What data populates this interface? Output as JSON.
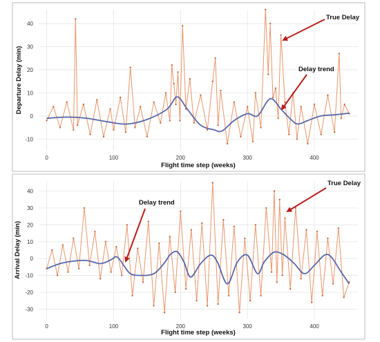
{
  "charts": [
    {
      "xlabel": "Flight time step (weeks)",
      "ylabel": "Departure Delay (min)",
      "xticks": [
        "0",
        "100",
        "200",
        "300",
        "400"
      ],
      "yticks": [
        "-10",
        "0",
        "10",
        "20",
        "30",
        "40"
      ],
      "annotations": [
        "True Delay",
        "Delay trend"
      ]
    },
    {
      "xlabel": "Flight time step (weeks)",
      "ylabel": "Arrival Delay (min)",
      "xticks": [
        "0",
        "100",
        "200",
        "300",
        "400"
      ],
      "yticks": [
        "-30",
        "-20",
        "-10",
        "0",
        "10",
        "20",
        "30",
        "40"
      ],
      "annotations": [
        "True Delay",
        "Delay trend"
      ]
    }
  ],
  "chart_data": [
    {
      "type": "line",
      "title": "",
      "xlabel": "Flight time step (weeks)",
      "ylabel": "Departure Delay (min)",
      "xlim": [
        -12,
        465
      ],
      "ylim": [
        -15,
        46
      ],
      "grid": true,
      "colors": {
        "true_delay": "#e8956a",
        "trend": "#5566aa",
        "arrow": "#b81c1c"
      },
      "series": [
        {
          "name": "True Delay",
          "x": [
            0,
            10,
            20,
            30,
            40,
            43,
            46,
            55,
            65,
            75,
            85,
            95,
            100,
            110,
            118,
            125,
            132,
            140,
            150,
            160,
            170,
            178,
            184,
            187,
            190,
            193,
            196,
            199,
            203,
            208,
            214,
            220,
            230,
            240,
            248,
            252,
            256,
            260,
            270,
            280,
            290,
            300,
            308,
            312,
            320,
            327,
            331,
            334,
            338,
            342,
            346,
            350,
            356,
            362,
            368,
            374,
            380,
            390,
            400,
            410,
            420,
            430,
            437,
            440,
            445,
            452
          ],
          "values": [
            -2,
            4,
            -5,
            6,
            -6,
            42,
            -4,
            5,
            -8,
            7,
            -9,
            3,
            -6,
            8,
            -7,
            21,
            -5,
            4,
            -9,
            6,
            -3,
            10,
            -2,
            22,
            14,
            5,
            19,
            -2,
            39,
            3,
            16,
            -3,
            9,
            -6,
            15,
            25,
            -4,
            11,
            -12,
            6,
            -9,
            4,
            -11,
            10,
            -5,
            46,
            18,
            40,
            8,
            12,
            -1,
            35,
            6,
            -8,
            10,
            -10,
            4,
            -12,
            5,
            -8,
            9,
            -7,
            27,
            -1,
            5,
            1
          ]
        },
        {
          "name": "Delay trend",
          "x": [
            0,
            30,
            60,
            90,
            120,
            150,
            180,
            195,
            210,
            230,
            250,
            262,
            280,
            300,
            315,
            330,
            338,
            350,
            365,
            375,
            390,
            410,
            430,
            452
          ],
          "values": [
            -1,
            -0.5,
            -1,
            -2.5,
            -3.5,
            -1.5,
            3,
            8.3,
            3,
            -4,
            -6,
            -6.5,
            -2,
            1,
            0,
            6.5,
            7.2,
            3,
            -1.5,
            -3.5,
            -2,
            0,
            0.5,
            1.2
          ]
        }
      ]
    },
    {
      "type": "line",
      "title": "",
      "xlabel": "Flight time step (weeks)",
      "ylabel": "Arrival Delay (min)",
      "xlim": [
        -12,
        465
      ],
      "ylim": [
        -36,
        46
      ],
      "grid": true,
      "colors": {
        "true_delay": "#e8956a",
        "trend": "#5566aa",
        "arrow": "#b81c1c"
      },
      "series": [
        {
          "name": "True Delay",
          "x": [
            0,
            8,
            16,
            24,
            32,
            40,
            48,
            56,
            64,
            72,
            80,
            88,
            96,
            104,
            112,
            120,
            128,
            136,
            144,
            152,
            160,
            168,
            176,
            184,
            192,
            200,
            208,
            216,
            224,
            232,
            240,
            248,
            256,
            264,
            272,
            280,
            288,
            296,
            304,
            312,
            320,
            328,
            336,
            340,
            344,
            348,
            352,
            356,
            364,
            372,
            380,
            388,
            396,
            404,
            412,
            420,
            428,
            436,
            444,
            452
          ],
          "values": [
            -6,
            5,
            -10,
            8,
            -8,
            12,
            -6,
            30,
            -4,
            16,
            -12,
            10,
            -8,
            7,
            -10,
            20,
            -22,
            6,
            -14,
            22,
            -28,
            9,
            -32,
            13,
            -20,
            28,
            -18,
            17,
            -25,
            21,
            -28,
            45,
            -27,
            23,
            -22,
            19,
            -32,
            12,
            -25,
            20,
            -22,
            30,
            -8,
            40,
            -14,
            35,
            -10,
            24,
            -18,
            30,
            -12,
            17,
            -26,
            16,
            -22,
            12,
            -15,
            18,
            -23,
            -14
          ]
        },
        {
          "name": "Delay trend",
          "x": [
            0,
            20,
            40,
            60,
            80,
            95,
            105,
            115,
            125,
            140,
            160,
            175,
            185,
            195,
            205,
            215,
            230,
            245,
            255,
            270,
            285,
            300,
            315,
            325,
            340,
            355,
            370,
            385,
            400,
            415,
            425,
            440,
            452
          ],
          "values": [
            -6,
            -3,
            -1.5,
            -1.2,
            -3,
            -1,
            1,
            -4,
            -9,
            -10,
            -9,
            -3,
            2.5,
            4,
            -2,
            -11,
            -3,
            2,
            -2,
            -15,
            -2,
            2,
            -9,
            -2,
            3.8,
            2,
            -3,
            -9,
            -4,
            2,
            1,
            -8,
            -15
          ]
        }
      ]
    }
  ]
}
